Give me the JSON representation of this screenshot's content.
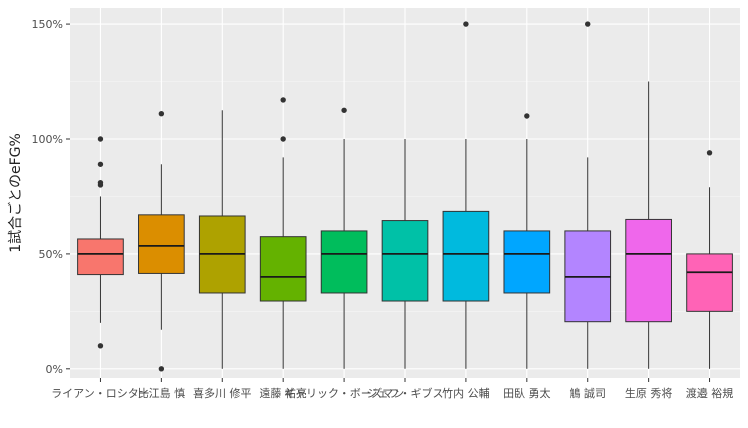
{
  "chart_data": {
    "type": "boxplot",
    "ylabel": "1試合ごとのeFG%",
    "xlabel": "",
    "ylim": [
      -0.04,
      1.57
    ],
    "y_ticks": [
      {
        "value": 0,
        "label": "0%"
      },
      {
        "value": 0.5,
        "label": "50%"
      },
      {
        "value": 1.0,
        "label": "100%"
      },
      {
        "value": 1.5,
        "label": "150%"
      }
    ],
    "grid": true,
    "legend": "none",
    "boxes": [
      {
        "category": "ライアン・ロシター",
        "color": "#F8766D",
        "whisker_low": 0.2,
        "q1": 0.41,
        "median": 0.5,
        "q3": 0.565,
        "whisker_high": 0.75,
        "outliers": [
          0.1,
          0.8,
          0.81,
          0.89,
          1.0
        ]
      },
      {
        "category": "比江島 慎",
        "color": "#DB8E00",
        "whisker_low": 0.17,
        "q1": 0.415,
        "median": 0.535,
        "q3": 0.67,
        "whisker_high": 0.89,
        "outliers": [
          0.0,
          1.11
        ]
      },
      {
        "category": "喜多川 修平",
        "color": "#AEA200",
        "whisker_low": 0.0,
        "q1": 0.33,
        "median": 0.5,
        "q3": 0.665,
        "whisker_high": 1.125,
        "outliers": []
      },
      {
        "category": "遠藤 祐亮",
        "color": "#64B200",
        "whisker_low": 0.0,
        "q1": 0.295,
        "median": 0.4,
        "q3": 0.575,
        "whisker_high": 0.92,
        "outliers": [
          1.0,
          1.17
        ]
      },
      {
        "category": "ギャリック・ボーズマン",
        "color": "#00BD5C",
        "whisker_low": 0.0,
        "q1": 0.33,
        "median": 0.5,
        "q3": 0.6,
        "whisker_high": 1.0,
        "outliers": [
          1.125
        ]
      },
      {
        "category": "ジェフ・ギブス",
        "color": "#00C1A7",
        "whisker_low": 0.0,
        "q1": 0.295,
        "median": 0.5,
        "q3": 0.645,
        "whisker_high": 1.0,
        "outliers": []
      },
      {
        "category": "竹内 公輔",
        "color": "#00BADE",
        "whisker_low": 0.0,
        "q1": 0.295,
        "median": 0.5,
        "q3": 0.685,
        "whisker_high": 1.0,
        "outliers": [
          1.5
        ]
      },
      {
        "category": "田臥 勇太",
        "color": "#00A6FF",
        "whisker_low": 0.0,
        "q1": 0.33,
        "median": 0.5,
        "q3": 0.6,
        "whisker_high": 1.0,
        "outliers": [
          1.1
        ]
      },
      {
        "category": "鵤 誠司",
        "color": "#B385FF",
        "whisker_low": 0.0,
        "q1": 0.205,
        "median": 0.4,
        "q3": 0.6,
        "whisker_high": 0.92,
        "outliers": [
          1.5
        ]
      },
      {
        "category": "生原 秀将",
        "color": "#EF67EB",
        "whisker_low": 0.0,
        "q1": 0.205,
        "median": 0.5,
        "q3": 0.65,
        "whisker_high": 1.25,
        "outliers": []
      },
      {
        "category": "渡邉 裕規",
        "color": "#FF63B6",
        "whisker_low": 0.0,
        "q1": 0.25,
        "median": 0.42,
        "q3": 0.5,
        "whisker_high": 0.79,
        "outliers": [
          0.94
        ]
      }
    ]
  }
}
